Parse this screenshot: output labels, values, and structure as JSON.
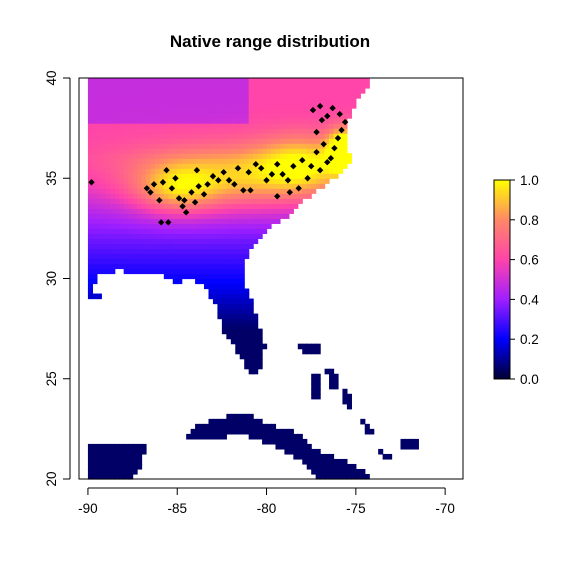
{
  "chart_data": {
    "type": "heatmap",
    "title": "Native range distribution",
    "xlabel": "",
    "ylabel": "",
    "xlim": [
      -90.5,
      -69
    ],
    "ylim": [
      20,
      40
    ],
    "x_ticks": [
      -90,
      -85,
      -80,
      -75,
      -70
    ],
    "x_tick_labels": [
      "-90",
      "-85",
      "-80",
      "-75",
      "-70"
    ],
    "y_ticks": [
      20,
      25,
      30,
      35,
      40
    ],
    "y_tick_labels": [
      "20",
      "25",
      "30",
      "35",
      "40"
    ],
    "grid": false,
    "colorbar": {
      "range": [
        0,
        1
      ],
      "ticks": [
        0,
        0.2,
        0.4,
        0.6,
        0.8,
        1
      ],
      "tick_labels": [
        "0.0",
        "0.2",
        "0.4",
        "0.6",
        "0.8",
        "1.0"
      ],
      "colors": [
        "#000033",
        "#0000ff",
        "#9f1fff",
        "#ff44aa",
        "#ff8866",
        "#ffff00"
      ],
      "placement": "right"
    },
    "background_color": "#ffffff",
    "occurrence_points": [
      [
        -89.8,
        34.8
      ],
      [
        -86.7,
        34.5
      ],
      [
        -86.5,
        34.3
      ],
      [
        -86.3,
        34.7
      ],
      [
        -86.0,
        33.9
      ],
      [
        -85.8,
        34.8
      ],
      [
        -85.6,
        35.4
      ],
      [
        -85.3,
        34.5
      ],
      [
        -85.1,
        35.0
      ],
      [
        -84.9,
        34.0
      ],
      [
        -84.7,
        33.6
      ],
      [
        -84.5,
        33.3
      ],
      [
        -84.2,
        34.3
      ],
      [
        -84.0,
        33.8
      ],
      [
        -83.8,
        34.6
      ],
      [
        -83.5,
        34.2
      ],
      [
        -83.3,
        34.7
      ],
      [
        -83.0,
        35.1
      ],
      [
        -82.7,
        34.9
      ],
      [
        -82.4,
        35.3
      ],
      [
        -82.1,
        34.9
      ],
      [
        -81.8,
        34.7
      ],
      [
        -81.6,
        35.5
      ],
      [
        -81.3,
        34.4
      ],
      [
        -81.0,
        35.3
      ],
      [
        -80.6,
        35.7
      ],
      [
        -80.3,
        35.5
      ],
      [
        -80.0,
        34.9
      ],
      [
        -79.7,
        35.2
      ],
      [
        -79.4,
        35.7
      ],
      [
        -79.1,
        35.2
      ],
      [
        -78.8,
        34.9
      ],
      [
        -78.5,
        35.6
      ],
      [
        -78.2,
        34.5
      ],
      [
        -78.0,
        35.9
      ],
      [
        -77.7,
        35.0
      ],
      [
        -77.5,
        35.6
      ],
      [
        -77.2,
        36.3
      ],
      [
        -77.0,
        35.4
      ],
      [
        -76.8,
        36.7
      ],
      [
        -76.6,
        35.8
      ],
      [
        -76.4,
        36.0
      ],
      [
        -76.2,
        36.5
      ],
      [
        -76.0,
        37.0
      ],
      [
        -75.8,
        37.4
      ],
      [
        -75.6,
        37.8
      ],
      [
        -75.9,
        38.2
      ],
      [
        -76.3,
        38.5
      ],
      [
        -76.6,
        38.1
      ],
      [
        -76.9,
        37.9
      ],
      [
        -77.2,
        37.3
      ],
      [
        -77.4,
        38.4
      ],
      [
        -77.0,
        38.6
      ],
      [
        -85.9,
        32.8
      ],
      [
        -85.5,
        32.8
      ],
      [
        -84.6,
        33.9
      ],
      [
        -83.9,
        35.4
      ],
      [
        -80.9,
        34.4
      ],
      [
        -78.7,
        34.3
      ],
      [
        -79.4,
        34.1
      ]
    ]
  }
}
